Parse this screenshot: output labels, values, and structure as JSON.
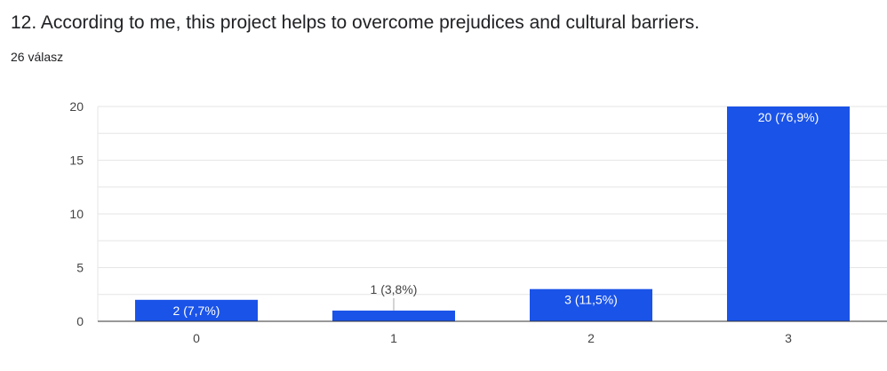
{
  "header": {
    "title": "12. According to me, this project helps to overcome prejudices and cultural barriers.",
    "response_count": "26 válasz"
  },
  "colors": {
    "bar": "#1a53e8",
    "gridline": "#e6e6e6",
    "axis": "#333333",
    "label_inside": "#ffffff",
    "label_outside": "#444444",
    "leader_line": "#aaaaaa"
  },
  "chart_data": {
    "type": "bar",
    "categories": [
      "0",
      "1",
      "2",
      "3"
    ],
    "values": [
      2,
      1,
      3,
      20
    ],
    "data_labels": [
      "2 (7,7%)",
      "1 (3,8%)",
      "3 (11,5%)",
      "20 (76,9%)"
    ],
    "label_outside": [
      false,
      true,
      false,
      false
    ],
    "yticks": [
      0,
      5,
      10,
      15,
      20
    ],
    "ylim": [
      0,
      20
    ],
    "minor_gridlines": true,
    "title": "",
    "xlabel": "",
    "ylabel": "",
    "legend": "none"
  }
}
